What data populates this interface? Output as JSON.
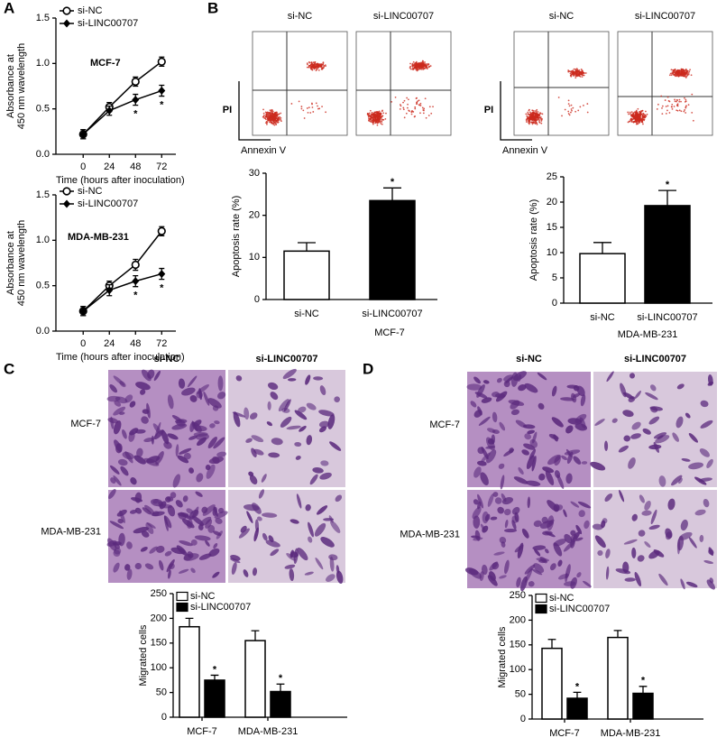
{
  "figure": {
    "panel_labels": [
      "A",
      "B",
      "C",
      "D"
    ],
    "flow_cytometry": [
      {
        "columns": [
          "si-NC",
          "si-LINC00707"
        ],
        "y_label": "PI",
        "x_label": "Annexin V"
      },
      {
        "columns": [
          "si-NC",
          "si-LINC00707"
        ],
        "y_label": "PI",
        "x_label": "Annexin V"
      }
    ],
    "micrographs": [
      {
        "columns": [
          "si-NC",
          "si-LINC00707"
        ],
        "rows": [
          "MCF-7",
          "MDA-MB-231"
        ]
      },
      {
        "columns": [
          "si-NC",
          "si-LINC00707"
        ],
        "rows": [
          "MCF-7",
          "MDA-MB-231"
        ]
      }
    ]
  },
  "chart_data": [
    {
      "type": "line",
      "annotation": "MCF-7",
      "xlabel": "Time (hours after inoculation)",
      "ylabel": [
        "Absorbance at",
        "450 nm wavelength"
      ],
      "x": [
        0,
        24,
        48,
        72
      ],
      "xlim": [
        -25,
        85
      ],
      "xticks": [
        0,
        24,
        48,
        72
      ],
      "ylim": [
        0,
        1.5
      ],
      "yticks": [
        {
          "value": 0,
          "label": "0.0"
        },
        0.5,
        {
          "value": 1,
          "label": "1.0"
        },
        1.5
      ],
      "series": [
        {
          "name": "si-NC",
          "color": "#000000",
          "marker": "circle-open",
          "values": [
            0.22,
            0.52,
            0.8,
            1.02
          ],
          "errors": [
            0.05,
            0.05,
            0.05,
            0.05
          ],
          "significance": [
            null,
            null,
            null,
            null
          ]
        },
        {
          "name": "si-LINC00707",
          "color": "#000000",
          "marker": "diamond",
          "values": [
            0.22,
            0.48,
            0.6,
            0.7
          ],
          "errors": [
            0.05,
            0.05,
            0.06,
            0.06
          ],
          "significance": [
            null,
            null,
            "*",
            "*"
          ]
        }
      ]
    },
    {
      "type": "line",
      "annotation": "MDA-MB-231",
      "xlabel": "Time (hours after inoculation)",
      "ylabel": [
        "Absorbance at",
        "450 nm wavelength"
      ],
      "x": [
        0,
        24,
        48,
        72
      ],
      "xlim": [
        -25,
        85
      ],
      "xticks": [
        0,
        24,
        48,
        72
      ],
      "ylim": [
        0,
        1.5
      ],
      "yticks": [
        {
          "value": 0,
          "label": "0.0"
        },
        0.5,
        {
          "value": 1,
          "label": "1.0"
        },
        1.5
      ],
      "series": [
        {
          "name": "si-NC",
          "color": "#000000",
          "marker": "circle-open",
          "values": [
            0.22,
            0.5,
            0.73,
            1.1
          ],
          "errors": [
            0.05,
            0.05,
            0.06,
            0.05
          ],
          "significance": [
            null,
            null,
            null,
            null
          ]
        },
        {
          "name": "si-LINC00707",
          "color": "#000000",
          "marker": "diamond",
          "values": [
            0.22,
            0.45,
            0.55,
            0.63
          ],
          "errors": [
            0.05,
            0.06,
            0.06,
            0.06
          ],
          "significance": [
            null,
            null,
            "*",
            "*"
          ]
        }
      ]
    },
    {
      "type": "bar",
      "xlabel": "MCF-7",
      "ylabel": "Apoptosis rate (%)",
      "categories": [
        "si-NC",
        "si-LINC00707"
      ],
      "values": [
        11.5,
        23.5
      ],
      "errors": [
        2,
        3
      ],
      "colors": [
        "#ffffff",
        "#000000"
      ],
      "significance": [
        null,
        "*"
      ],
      "ylim": [
        0,
        30
      ],
      "yticks": [
        0,
        10,
        20,
        30
      ]
    },
    {
      "type": "bar",
      "xlabel": "MDA-MB-231",
      "ylabel": "Apoptosis rate (%)",
      "categories": [
        "si-NC",
        "si-LINC00707"
      ],
      "values": [
        9.8,
        19.3
      ],
      "errors": [
        2.2,
        3
      ],
      "colors": [
        "#ffffff",
        "#000000"
      ],
      "significance": [
        null,
        "*"
      ],
      "ylim": [
        0,
        25
      ],
      "yticks": [
        0,
        5,
        10,
        15,
        20,
        25
      ]
    },
    {
      "type": "bar",
      "ylabel": "Migrated cells",
      "categories": [
        "MCF-7",
        "MDA-MB-231"
      ],
      "series": [
        {
          "name": "si-NC",
          "color": "#ffffff",
          "values": [
            183,
            155
          ],
          "errors": [
            17,
            20
          ],
          "significance": [
            null,
            null
          ]
        },
        {
          "name": "si-LINC00707",
          "color": "#000000",
          "values": [
            75,
            52
          ],
          "errors": [
            10,
            15
          ],
          "significance": [
            "*",
            "*"
          ]
        }
      ],
      "ylim": [
        0,
        250
      ],
      "yticks": [
        0,
        50,
        100,
        150,
        200,
        250
      ],
      "legend": "top-left"
    },
    {
      "type": "bar",
      "ylabel": "Migrated cells",
      "categories": [
        "MCF-7",
        "MDA-MB-231"
      ],
      "series": [
        {
          "name": "si-NC",
          "color": "#ffffff",
          "values": [
            143,
            165
          ],
          "errors": [
            18,
            14
          ],
          "significance": [
            null,
            null
          ]
        },
        {
          "name": "si-LINC00707",
          "color": "#000000",
          "values": [
            42,
            52
          ],
          "errors": [
            12,
            14
          ],
          "significance": [
            "*",
            "*"
          ]
        }
      ],
      "ylim": [
        0,
        250
      ],
      "yticks": [
        0,
        50,
        100,
        150,
        200,
        250
      ],
      "legend": "top-left"
    }
  ]
}
